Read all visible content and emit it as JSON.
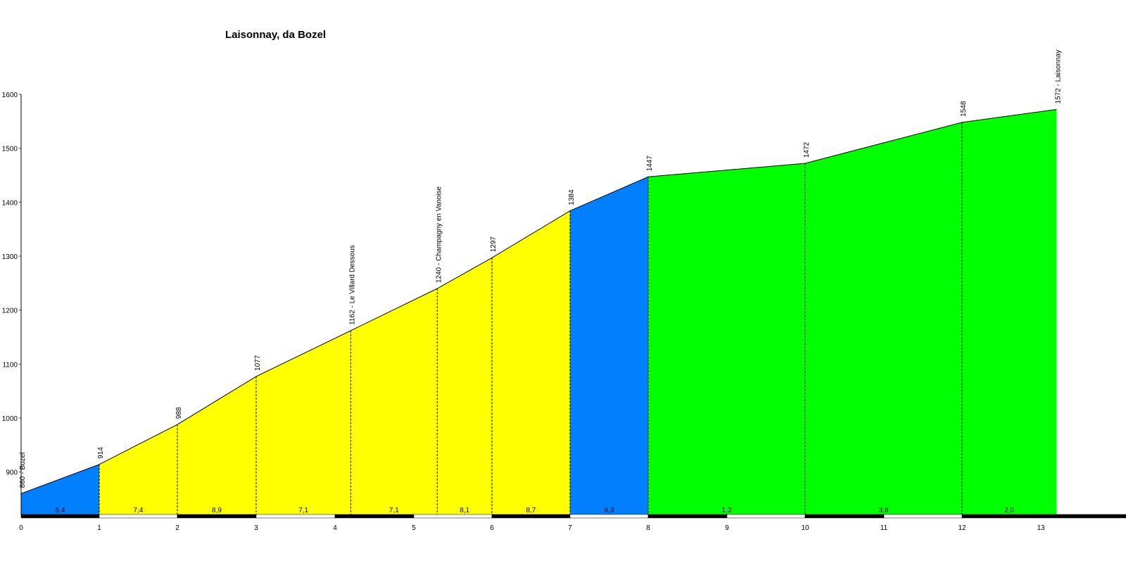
{
  "chart_data": {
    "type": "area",
    "title": "Laisonnay, da Bozel",
    "xlabel": "",
    "ylabel": "",
    "ylim": [
      820,
      1600
    ],
    "y_ticks": [
      900,
      1000,
      1100,
      1200,
      1300,
      1400,
      1500,
      1600
    ],
    "x_ticks": [
      0,
      1,
      2,
      3,
      4,
      5,
      6,
      7,
      8,
      9,
      10,
      11,
      12,
      13
    ],
    "grid": false,
    "legend": "none",
    "profile": [
      {
        "x": 0,
        "y": 860,
        "label": "860 - Bozel"
      },
      {
        "x": 1,
        "y": 914,
        "label": "914"
      },
      {
        "x": 2,
        "y": 988,
        "label": "988"
      },
      {
        "x": 3,
        "y": 1077,
        "label": "1077"
      },
      {
        "x": 4.2,
        "y": 1162,
        "label": "1162 - Le Villard Dessous"
      },
      {
        "x": 5.3,
        "y": 1240,
        "label": "1240 - Champagny en Vanoise"
      },
      {
        "x": 6,
        "y": 1297,
        "label": "1297"
      },
      {
        "x": 7,
        "y": 1384,
        "label": "1384"
      },
      {
        "x": 8,
        "y": 1447,
        "label": "1447"
      },
      {
        "x": 10,
        "y": 1472,
        "label": "1472"
      },
      {
        "x": 12,
        "y": 1548,
        "label": "1548"
      },
      {
        "x": 13.2,
        "y": 1572,
        "label": "1572 - Laisonnay"
      }
    ],
    "segments": [
      {
        "from": 0,
        "to": 1,
        "gradient": "5,4",
        "color": "#0080ff"
      },
      {
        "from": 1,
        "to": 2,
        "gradient": "7,4",
        "color": "#ffff00"
      },
      {
        "from": 2,
        "to": 3,
        "gradient": "8,9",
        "color": "#ffff00"
      },
      {
        "from": 3,
        "to": 4.2,
        "gradient": "7,1",
        "color": "#ffff00"
      },
      {
        "from": 4.2,
        "to": 5.3,
        "gradient": "7,1",
        "color": "#ffff00"
      },
      {
        "from": 5.3,
        "to": 6,
        "gradient": "8,1",
        "color": "#ffff00"
      },
      {
        "from": 6,
        "to": 7,
        "gradient": "8,7",
        "color": "#ffff00"
      },
      {
        "from": 7,
        "to": 8,
        "gradient": "6,3",
        "color": "#0080ff"
      },
      {
        "from": 8,
        "to": 10,
        "gradient": "1,3",
        "color": "#00ff00"
      },
      {
        "from": 10,
        "to": 12,
        "gradient": "3,8",
        "color": "#00ff00"
      },
      {
        "from": 12,
        "to": 13.2,
        "gradient": "2,0",
        "color": "#00ff00"
      }
    ]
  }
}
